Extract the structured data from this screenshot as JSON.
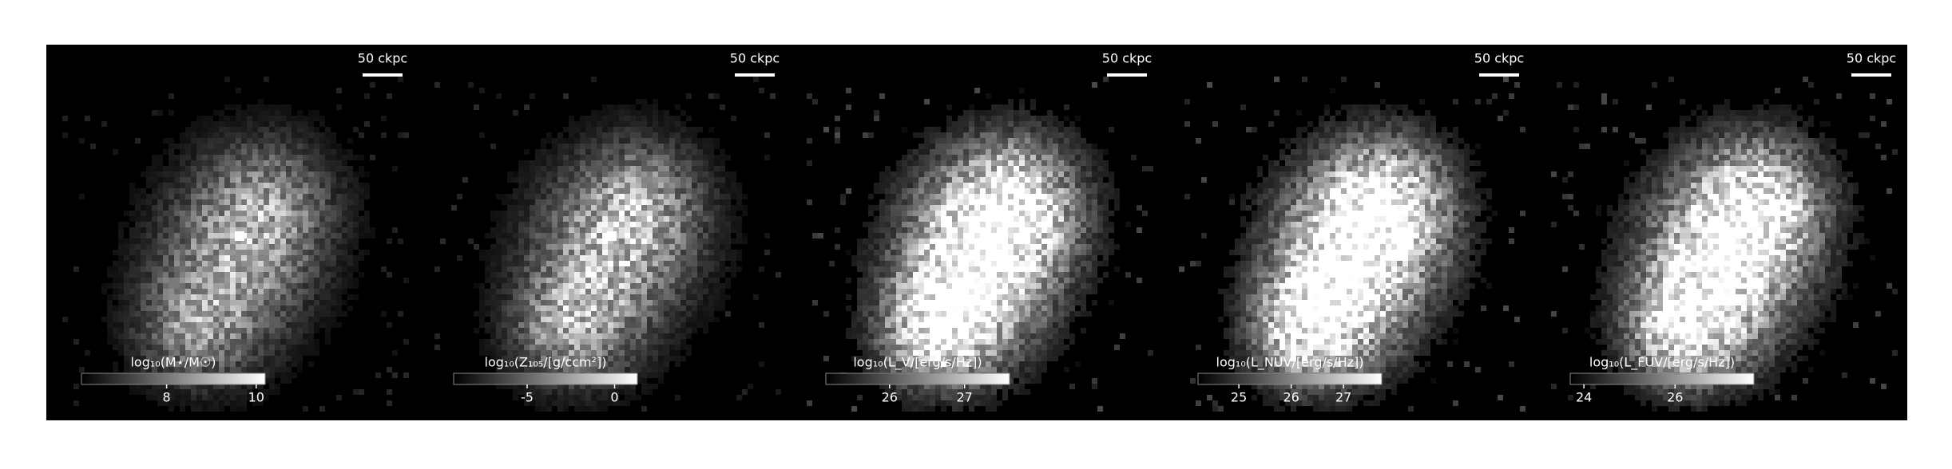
{
  "chart_data": [
    {
      "type": "image",
      "scale_bar_label": "50 ckpc",
      "colorbar_label": "log₁₀(M⋆/M☉)",
      "clim": [
        6.1,
        10.2
      ],
      "cticks": [
        8,
        10
      ]
    },
    {
      "type": "image",
      "scale_bar_label": "50 ckpc",
      "colorbar_label": "log₁₀(Z₁₀₅/[g/ccm²])",
      "clim": [
        -9.2,
        1.3
      ],
      "cticks": [
        -5,
        0
      ]
    },
    {
      "type": "image",
      "scale_bar_label": "50 ckpc",
      "colorbar_label": "log₁₀(L_V/[erg/s/Hz])",
      "clim": [
        25.15,
        27.6
      ],
      "cticks": [
        26,
        27
      ]
    },
    {
      "type": "image",
      "scale_bar_label": "50 ckpc",
      "colorbar_label": "log₁₀(L_NUV/[erg/s/Hz])",
      "clim": [
        24.22,
        27.73
      ],
      "cticks": [
        25,
        26,
        27
      ]
    },
    {
      "type": "image",
      "scale_bar_label": "50 ckpc",
      "colorbar_label": "log₁₀(L_FUV/[erg/s/Hz])",
      "clim": [
        23.7,
        27.73
      ],
      "cticks": [
        24,
        26
      ]
    }
  ]
}
